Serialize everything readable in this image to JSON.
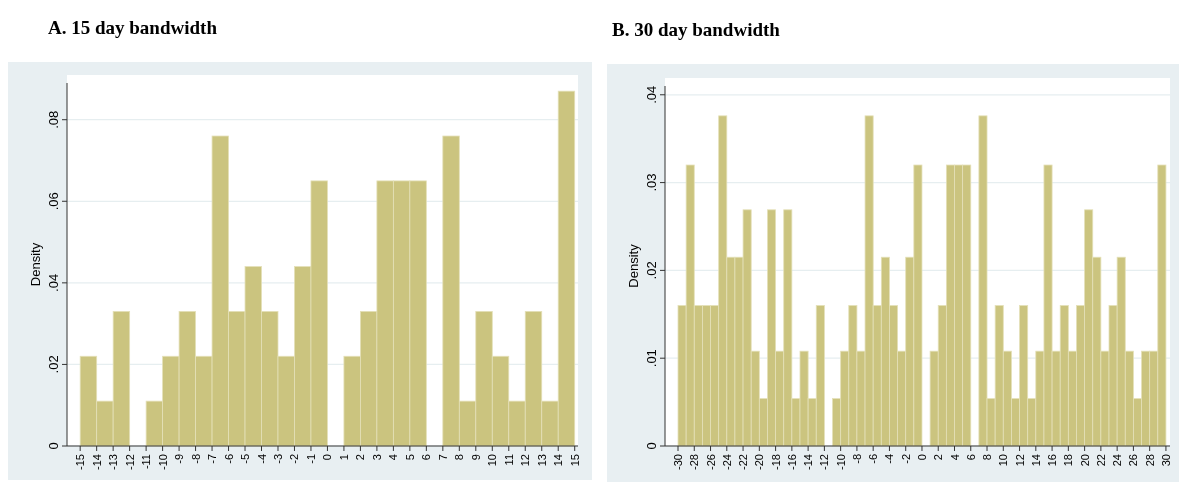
{
  "chart_data": [
    {
      "type": "histogram",
      "title": "A. 15 day bandwidth",
      "ylabel": "Density",
      "color": "#cbc47f",
      "grid": "y",
      "bins": [
        -15,
        -14,
        -13,
        -12,
        -11,
        -10,
        -9,
        -8,
        -7,
        -6,
        -5,
        -4,
        -3,
        -2,
        -1,
        0,
        1,
        2,
        3,
        4,
        5,
        6,
        7,
        8,
        9,
        10,
        11,
        12,
        13,
        14,
        15
      ],
      "values": [
        0.022,
        0.011,
        0.033,
        0,
        0.011,
        0.022,
        0.033,
        0.022,
        0.076,
        0.033,
        0.044,
        0.033,
        0.022,
        0.044,
        0.065,
        0,
        0.022,
        0.033,
        0.065,
        0.065,
        0.065,
        0,
        0.076,
        0.011,
        0.033,
        0.022,
        0.011,
        0.033,
        0.011,
        0.087
      ],
      "xlim": [
        -15.8,
        15.2
      ],
      "xticks": [
        -15,
        -14,
        -13,
        -12,
        -11,
        -10,
        -9,
        -8,
        -7,
        -6,
        -5,
        -4,
        -3,
        -2,
        -1,
        0,
        1,
        2,
        3,
        4,
        5,
        6,
        7,
        8,
        9,
        10,
        11,
        12,
        13,
        14,
        15
      ],
      "ylim": [
        0,
        0.089
      ],
      "yticks": [
        {
          "value": 0,
          "label": "0"
        },
        {
          "value": 0.02,
          "label": ".02"
        },
        {
          "value": 0.04,
          "label": ".04"
        },
        {
          "value": 0.06,
          "label": ".06"
        },
        {
          "value": 0.08,
          "label": ".08"
        }
      ]
    },
    {
      "type": "histogram",
      "title": "B. 30 day bandwidth",
      "ylabel": "Density",
      "color": "#cbc47f",
      "grid": "y",
      "bins": [
        -30,
        -29,
        -28,
        -27,
        -26,
        -25,
        -24,
        -23,
        -22,
        -21,
        -20,
        -19,
        -18,
        -17,
        -16,
        -15,
        -14,
        -13,
        -12,
        -11,
        -10,
        -9,
        -8,
        -7,
        -6,
        -5,
        -4,
        -3,
        -2,
        -1,
        0,
        1,
        2,
        3,
        4,
        5,
        6,
        7,
        8,
        9,
        10,
        11,
        12,
        13,
        14,
        15,
        16,
        17,
        18,
        19,
        20,
        21,
        22,
        23,
        24,
        25,
        26,
        27,
        28,
        29,
        30
      ],
      "values": [
        0.016,
        0.032,
        0.016,
        0.016,
        0.016,
        0.0376,
        0.0215,
        0.0215,
        0.0269,
        0.0108,
        0.0054,
        0.0269,
        0.0108,
        0.0269,
        0.0054,
        0.0108,
        0.0054,
        0.016,
        0,
        0.0054,
        0.0108,
        0.016,
        0.0108,
        0.0376,
        0.016,
        0.0215,
        0.016,
        0.0108,
        0.0215,
        0.032,
        0,
        0.0108,
        0.016,
        0.032,
        0.032,
        0.032,
        0,
        0.0376,
        0.0054,
        0.016,
        0.0108,
        0.0054,
        0.016,
        0.0054,
        0.0108,
        0.032,
        0.0108,
        0.016,
        0.0108,
        0.016,
        0.0269,
        0.0215,
        0.0108,
        0.016,
        0.0215,
        0.0108,
        0.0054,
        0.0108,
        0.0108,
        0.032
      ],
      "xlim": [
        -31.6,
        30.5
      ],
      "xticks": [
        -30,
        -28,
        -26,
        -24,
        -22,
        -20,
        -18,
        -16,
        -14,
        -12,
        -10,
        -8,
        -6,
        -4,
        -2,
        0,
        2,
        4,
        6,
        8,
        10,
        12,
        14,
        16,
        18,
        20,
        22,
        24,
        26,
        28,
        30
      ],
      "ylim": [
        0,
        0.041
      ],
      "yticks": [
        {
          "value": 0,
          "label": "0"
        },
        {
          "value": 0.01,
          "label": ".01"
        },
        {
          "value": 0.02,
          "label": ".02"
        },
        {
          "value": 0.03,
          "label": ".03"
        },
        {
          "value": 0.04,
          "label": ".04"
        }
      ]
    }
  ]
}
